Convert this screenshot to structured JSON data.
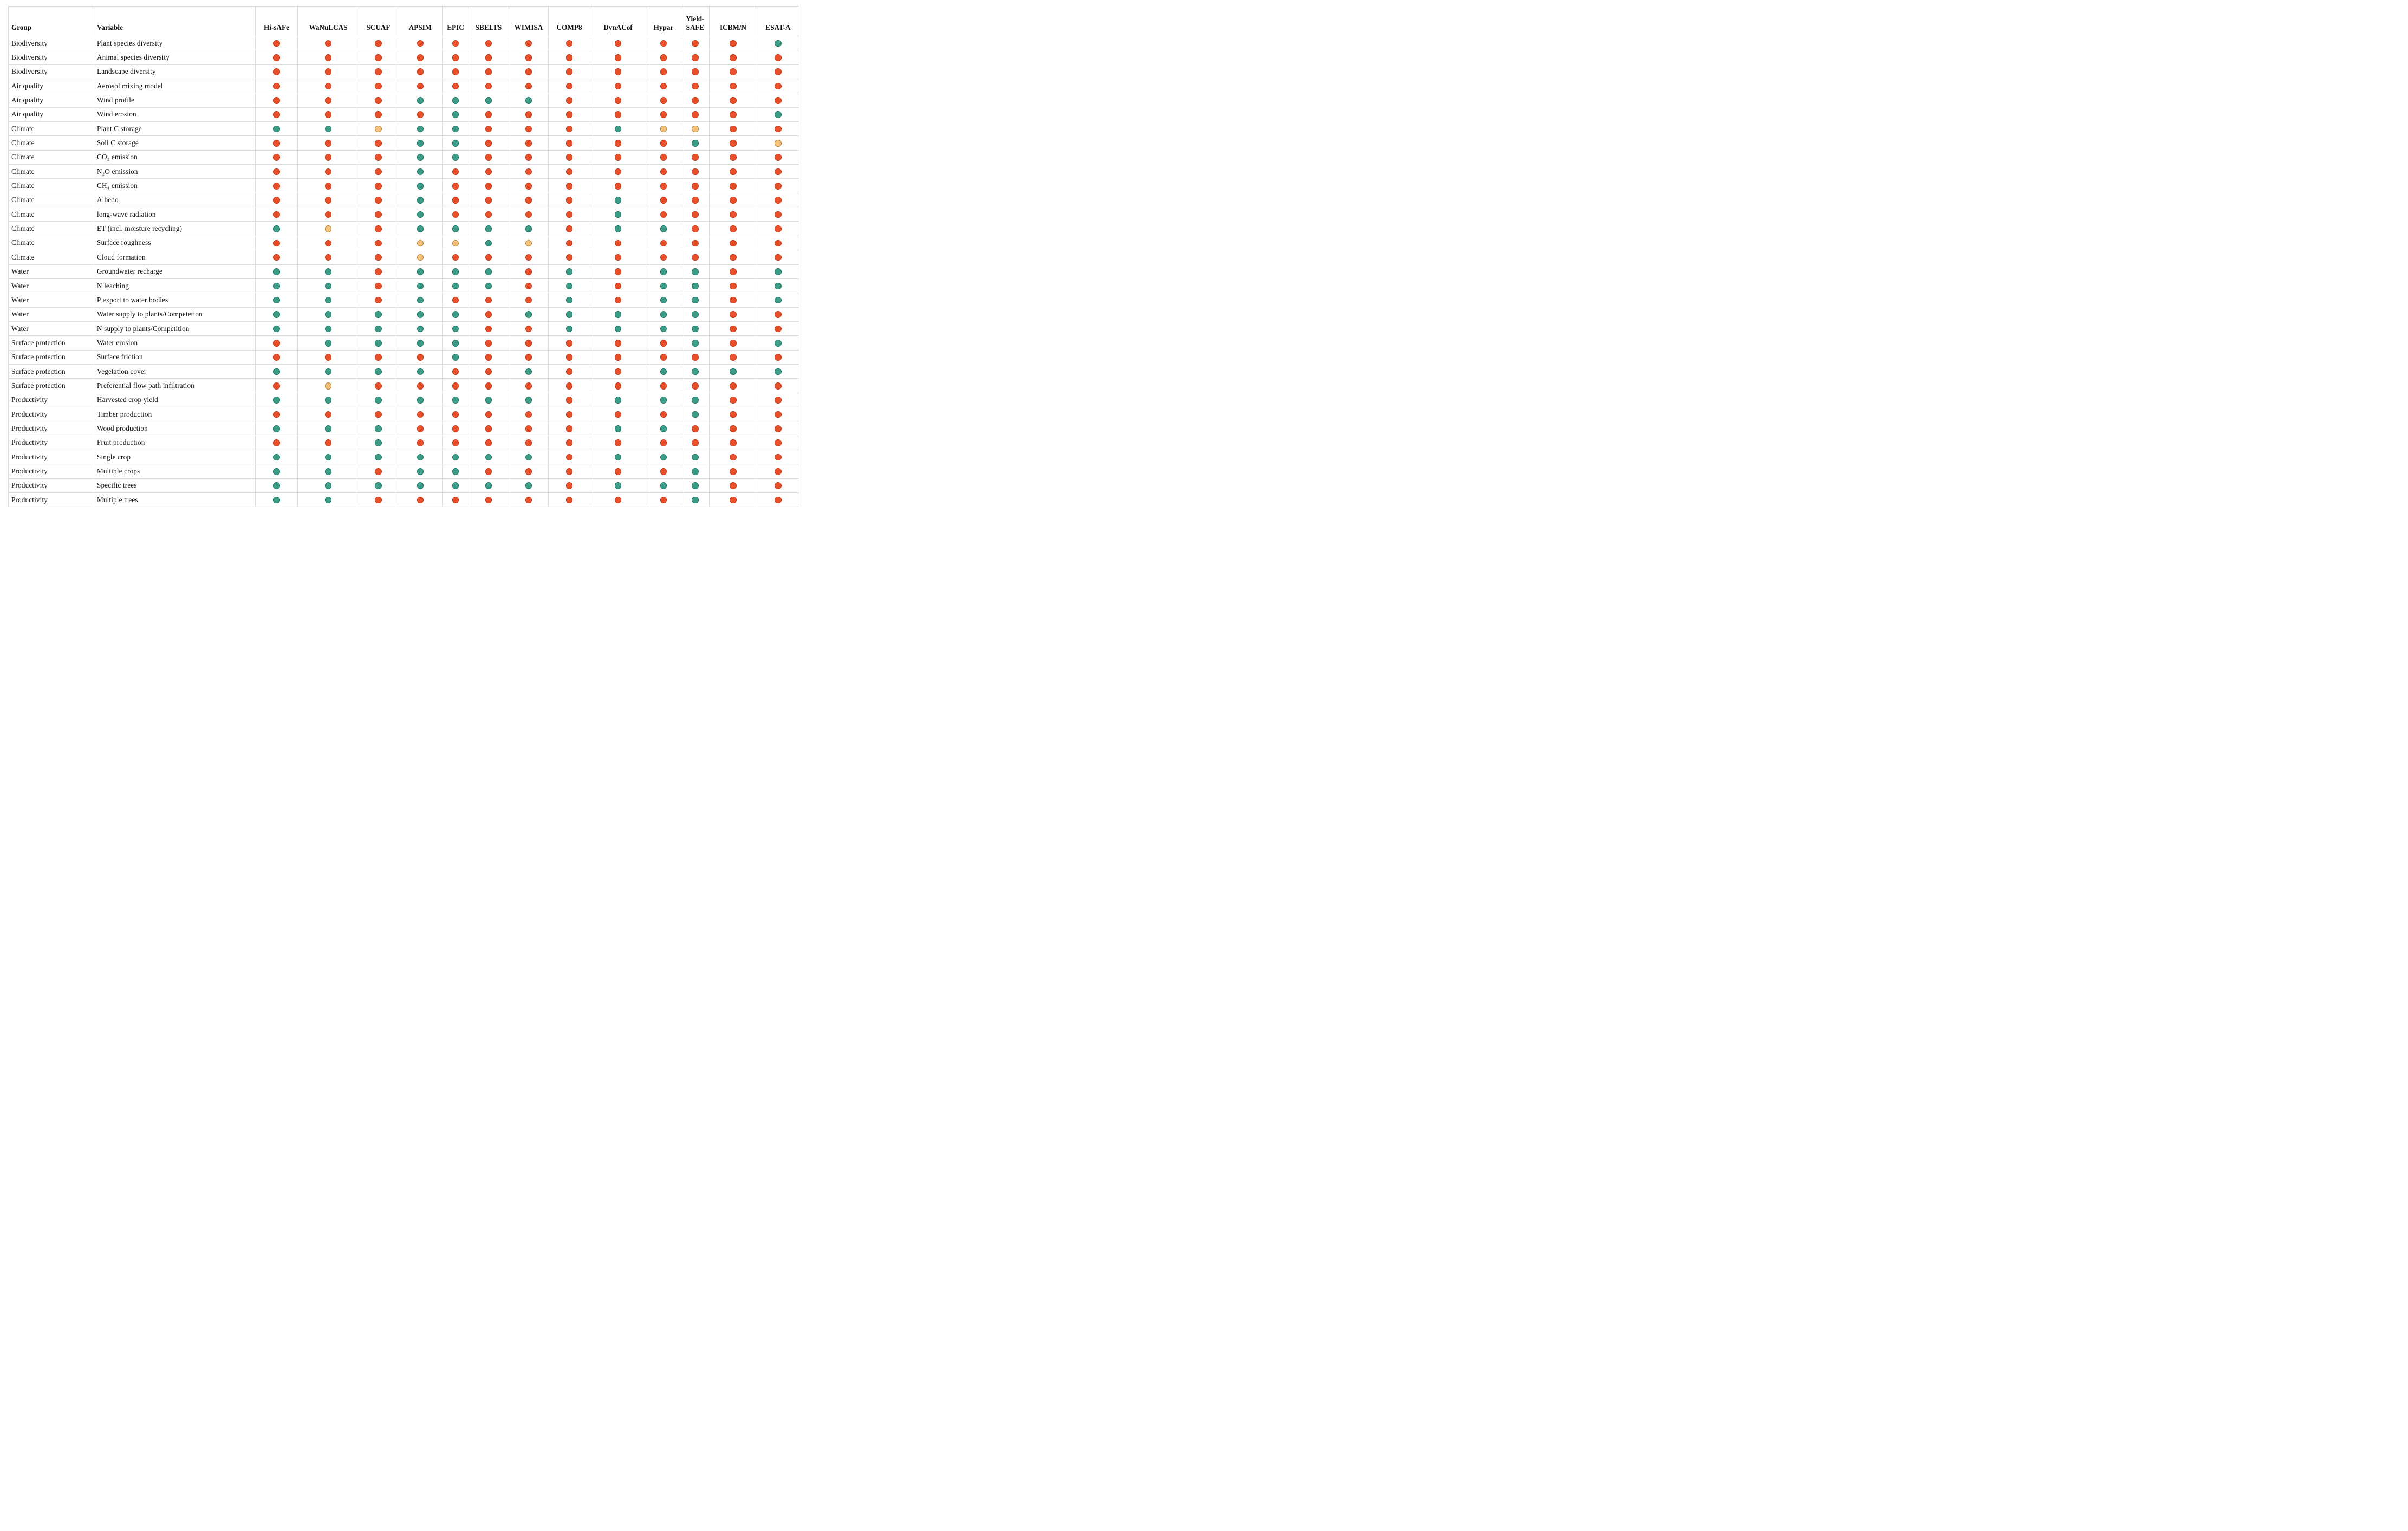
{
  "table": {
    "columns": [
      "Group",
      "Variable",
      "Hi-sAFe",
      "WaNuLCAS",
      "SCUAF",
      "APSIM",
      "EPIC",
      "SBELTS",
      "WIMISA",
      "COMP8",
      "DynACof",
      "Hypar",
      "Yield-SAFE",
      "ICBM/N",
      "ESAT-A"
    ],
    "rows": [
      {
        "group": "Biodiversity",
        "variable": "Plant species diversity",
        "cells": [
          "red",
          "red",
          "red",
          "red",
          "red",
          "red",
          "red",
          "red",
          "red",
          "red",
          "red",
          "red",
          "teal"
        ]
      },
      {
        "group": "Biodiversity",
        "variable": "Animal species diversity",
        "cells": [
          "red",
          "red",
          "red",
          "red",
          "red",
          "red",
          "red",
          "red",
          "red",
          "red",
          "red",
          "red",
          "red"
        ]
      },
      {
        "group": "Biodiversity",
        "variable": "Landscape diversity",
        "cells": [
          "red",
          "red",
          "red",
          "red",
          "red",
          "red",
          "red",
          "red",
          "red",
          "red",
          "red",
          "red",
          "red"
        ]
      },
      {
        "group": "Air quality",
        "variable": "Aerosol mixing model",
        "cells": [
          "red",
          "red",
          "red",
          "red",
          "red",
          "red",
          "red",
          "red",
          "red",
          "red",
          "red",
          "red",
          "red"
        ]
      },
      {
        "group": "Air quality",
        "variable": "Wind profile",
        "cells": [
          "red",
          "red",
          "red",
          "teal",
          "teal",
          "teal",
          "teal",
          "red",
          "red",
          "red",
          "red",
          "red",
          "red"
        ]
      },
      {
        "group": "Air quality",
        "variable": "Wind erosion",
        "cells": [
          "red",
          "red",
          "red",
          "red",
          "teal",
          "red",
          "red",
          "red",
          "red",
          "red",
          "red",
          "red",
          "teal"
        ]
      },
      {
        "group": "Climate",
        "variable": "Plant C storage",
        "cells": [
          "teal",
          "teal",
          "yellow",
          "teal",
          "teal",
          "red",
          "red",
          "red",
          "teal",
          "yellow",
          "yellow",
          "red",
          "red"
        ]
      },
      {
        "group": "Climate",
        "variable": "Soil C storage",
        "cells": [
          "red",
          "red",
          "red",
          "teal",
          "teal",
          "red",
          "red",
          "red",
          "red",
          "red",
          "teal",
          "red",
          "yellow"
        ]
      },
      {
        "group": "Climate",
        "variable": "CO₂ emission",
        "cells": [
          "red",
          "red",
          "red",
          "teal",
          "teal",
          "red",
          "red",
          "red",
          "red",
          "red",
          "red",
          "red",
          "red"
        ]
      },
      {
        "group": "Climate",
        "variable": "N₂O emission",
        "cells": [
          "red",
          "red",
          "red",
          "teal",
          "red",
          "red",
          "red",
          "red",
          "red",
          "red",
          "red",
          "red",
          "red"
        ]
      },
      {
        "group": "Climate",
        "variable": "CH₄ emission",
        "cells": [
          "red",
          "red",
          "red",
          "teal",
          "red",
          "red",
          "red",
          "red",
          "red",
          "red",
          "red",
          "red",
          "red"
        ]
      },
      {
        "group": "Climate",
        "variable": "Albedo",
        "cells": [
          "red",
          "red",
          "red",
          "teal",
          "red",
          "red",
          "red",
          "red",
          "teal",
          "red",
          "red",
          "red",
          "red"
        ]
      },
      {
        "group": "Climate",
        "variable": "long-wave radiation",
        "cells": [
          "red",
          "red",
          "red",
          "teal",
          "red",
          "red",
          "red",
          "red",
          "teal",
          "red",
          "red",
          "red",
          "red"
        ]
      },
      {
        "group": "Climate",
        "variable": "ET (incl. moisture recycling)",
        "cells": [
          "teal",
          "yellow",
          "red",
          "teal",
          "teal",
          "teal",
          "teal",
          "red",
          "teal",
          "teal",
          "red",
          "red",
          "red"
        ]
      },
      {
        "group": "Climate",
        "variable": "Surface roughness",
        "cells": [
          "red",
          "red",
          "red",
          "yellow",
          "yellow",
          "teal",
          "yellow",
          "red",
          "red",
          "red",
          "red",
          "red",
          "red"
        ]
      },
      {
        "group": "Climate",
        "variable": "Cloud formation",
        "cells": [
          "red",
          "red",
          "red",
          "yellow",
          "red",
          "red",
          "red",
          "red",
          "red",
          "red",
          "red",
          "red",
          "red"
        ]
      },
      {
        "group": "Water",
        "variable": "Groundwater recharge",
        "cells": [
          "teal",
          "teal",
          "red",
          "teal",
          "teal",
          "teal",
          "red",
          "teal",
          "red",
          "teal",
          "teal",
          "red",
          "teal"
        ]
      },
      {
        "group": "Water",
        "variable": "N leaching",
        "cells": [
          "teal",
          "teal",
          "red",
          "teal",
          "teal",
          "teal",
          "red",
          "teal",
          "red",
          "teal",
          "teal",
          "red",
          "teal"
        ]
      },
      {
        "group": "Water",
        "variable": "P export to water bodies",
        "cells": [
          "teal",
          "teal",
          "red",
          "teal",
          "red",
          "red",
          "red",
          "teal",
          "red",
          "teal",
          "teal",
          "red",
          "teal"
        ]
      },
      {
        "group": "Water",
        "variable": "Water supply to plants/Competetion",
        "cells": [
          "teal",
          "teal",
          "teal",
          "teal",
          "teal",
          "red",
          "teal",
          "teal",
          "teal",
          "teal",
          "teal",
          "red",
          "red"
        ]
      },
      {
        "group": "Water",
        "variable": "N supply to plants/Competition",
        "cells": [
          "teal",
          "teal",
          "teal",
          "teal",
          "teal",
          "red",
          "red",
          "teal",
          "teal",
          "teal",
          "teal",
          "red",
          "red"
        ]
      },
      {
        "group": "Surface protection",
        "variable": "Water erosion",
        "cells": [
          "red",
          "teal",
          "teal",
          "teal",
          "teal",
          "red",
          "red",
          "red",
          "red",
          "red",
          "teal",
          "red",
          "teal"
        ]
      },
      {
        "group": "Surface protection",
        "variable": "Surface friction",
        "cells": [
          "red",
          "red",
          "red",
          "red",
          "teal",
          "red",
          "red",
          "red",
          "red",
          "red",
          "red",
          "red",
          "red"
        ]
      },
      {
        "group": "Surface protection",
        "variable": "Vegetation cover",
        "cells": [
          "teal",
          "teal",
          "teal",
          "teal",
          "red",
          "red",
          "teal",
          "red",
          "red",
          "teal",
          "teal",
          "teal",
          "teal"
        ]
      },
      {
        "group": "Surface protection",
        "variable": "Preferential flow path infiltration",
        "cells": [
          "red",
          "yellow",
          "red",
          "red",
          "red",
          "red",
          "red",
          "red",
          "red",
          "red",
          "red",
          "red",
          "red"
        ]
      },
      {
        "group": "Productivity",
        "variable": "Harvested crop yield",
        "cells": [
          "teal",
          "teal",
          "teal",
          "teal",
          "teal",
          "teal",
          "teal",
          "red",
          "teal",
          "teal",
          "teal",
          "red",
          "red"
        ]
      },
      {
        "group": "Productivity",
        "variable": "Timber production",
        "cells": [
          "red",
          "red",
          "red",
          "red",
          "red",
          "red",
          "red",
          "red",
          "red",
          "red",
          "teal",
          "red",
          "red"
        ]
      },
      {
        "group": "Productivity",
        "variable": "Wood production",
        "cells": [
          "teal",
          "teal",
          "teal",
          "red",
          "red",
          "red",
          "red",
          "red",
          "teal",
          "teal",
          "red",
          "red",
          "red"
        ]
      },
      {
        "group": "Productivity",
        "variable": "Fruit production",
        "cells": [
          "red",
          "red",
          "teal",
          "red",
          "red",
          "red",
          "red",
          "red",
          "red",
          "red",
          "red",
          "red",
          "red"
        ]
      },
      {
        "group": "Productivity",
        "variable": "Single crop",
        "cells": [
          "teal",
          "teal",
          "teal",
          "teal",
          "teal",
          "teal",
          "teal",
          "red",
          "teal",
          "teal",
          "teal",
          "red",
          "red"
        ]
      },
      {
        "group": "Productivity",
        "variable": "Multiple crops",
        "cells": [
          "teal",
          "teal",
          "red",
          "teal",
          "teal",
          "red",
          "red",
          "red",
          "red",
          "red",
          "teal",
          "red",
          "red"
        ]
      },
      {
        "group": "Productivity",
        "variable": "Specific trees",
        "cells": [
          "teal",
          "teal",
          "teal",
          "teal",
          "teal",
          "teal",
          "teal",
          "red",
          "teal",
          "teal",
          "teal",
          "red",
          "red"
        ]
      },
      {
        "group": "Productivity",
        "variable": "Multiple trees",
        "cells": [
          "teal",
          "teal",
          "red",
          "red",
          "red",
          "red",
          "red",
          "red",
          "red",
          "red",
          "teal",
          "red",
          "red"
        ]
      }
    ]
  },
  "colors": {
    "red": {
      "fill": "#E8502B",
      "border": "#C33C1B"
    },
    "teal": {
      "fill": "#3D9C87",
      "border": "#1E7767"
    },
    "yellow": {
      "fill": "#F5C37E",
      "border": "#B2822E"
    },
    "grid": "#DCDCDC"
  }
}
